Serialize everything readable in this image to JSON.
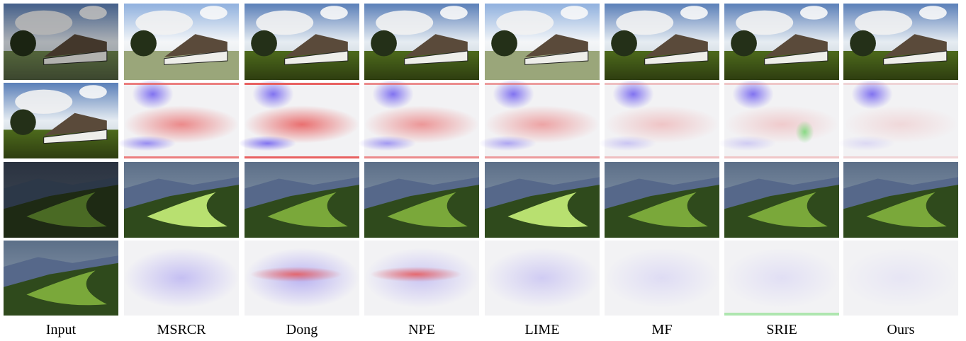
{
  "columns": [
    "Input",
    "MSRCR",
    "Dong",
    "NPE",
    "LIME",
    "MF",
    "SRIE",
    "Ours"
  ]
}
